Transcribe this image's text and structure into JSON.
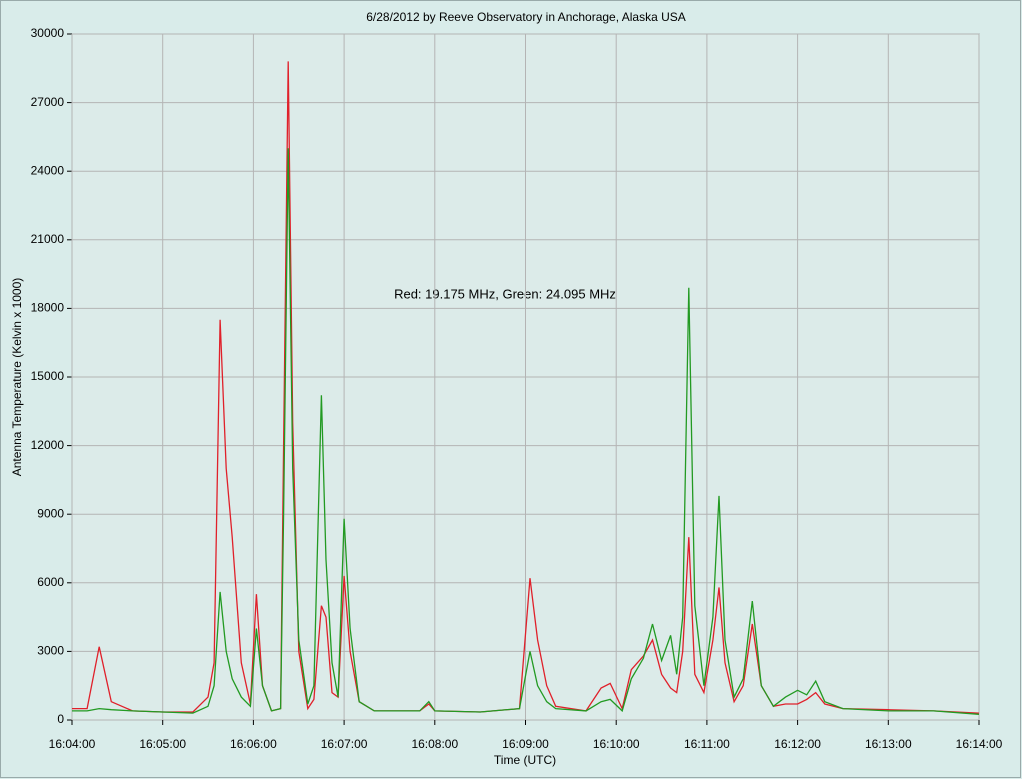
{
  "chart_data": {
    "type": "line",
    "title": "6/28/2012  by  Reeve Observatory  in  Anchorage, Alaska  USA",
    "annotation": "Red: 19.175 MHz, Green: 24.095 MHz",
    "x_label": "Time (UTC)",
    "y_label": "Antenna Temperature (Kelvin x 1000)",
    "xlim": [
      "16:04:00",
      "16:14:00"
    ],
    "xticks": [
      "16:04:00",
      "16:05:00",
      "16:06:00",
      "16:07:00",
      "16:08:00",
      "16:09:00",
      "16:10:00",
      "16:11:00",
      "16:12:00",
      "16:13:00",
      "16:14:00"
    ],
    "ylim": [
      0,
      30000
    ],
    "yticks": [
      0,
      3000,
      6000,
      9000,
      12000,
      15000,
      18000,
      21000,
      24000,
      27000,
      30000
    ],
    "grid": true,
    "x": [
      "16:04:00",
      "16:04:10",
      "16:04:18",
      "16:04:26",
      "16:04:40",
      "16:05:00",
      "16:05:20",
      "16:05:30",
      "16:05:34",
      "16:05:38",
      "16:05:42",
      "16:05:46",
      "16:05:52",
      "16:05:58",
      "16:06:02",
      "16:06:06",
      "16:06:12",
      "16:06:18",
      "16:06:20",
      "16:06:23",
      "16:06:26",
      "16:06:30",
      "16:06:36",
      "16:06:40",
      "16:06:45",
      "16:06:48",
      "16:06:52",
      "16:06:56",
      "16:07:00",
      "16:07:04",
      "16:07:10",
      "16:07:20",
      "16:07:50",
      "16:07:56",
      "16:08:00",
      "16:08:30",
      "16:08:56",
      "16:09:03",
      "16:09:08",
      "16:09:14",
      "16:09:20",
      "16:09:40",
      "16:09:50",
      "16:09:56",
      "16:10:04",
      "16:10:10",
      "16:10:18",
      "16:10:24",
      "16:10:30",
      "16:10:36",
      "16:10:40",
      "16:10:44",
      "16:10:48",
      "16:10:52",
      "16:10:58",
      "16:11:04",
      "16:11:08",
      "16:11:12",
      "16:11:18",
      "16:11:24",
      "16:11:30",
      "16:11:36",
      "16:11:44",
      "16:11:52",
      "16:12:00",
      "16:12:06",
      "16:12:12",
      "16:12:18",
      "16:12:30",
      "16:13:00",
      "16:13:30",
      "16:14:00"
    ],
    "series": [
      {
        "color": "#e0202a",
        "values": [
          500,
          500,
          3200,
          800,
          400,
          350,
          350,
          1000,
          2500,
          17500,
          11000,
          8000,
          2500,
          700,
          5500,
          1500,
          400,
          500,
          12000,
          28800,
          13000,
          3000,
          500,
          900,
          5000,
          4500,
          1200,
          1000,
          6300,
          3000,
          800,
          400,
          400,
          700,
          400,
          350,
          500,
          6200,
          3500,
          1500,
          600,
          400,
          1400,
          1600,
          500,
          2200,
          2800,
          3500,
          2000,
          1400,
          1200,
          3000,
          8000,
          2000,
          1200,
          3500,
          5800,
          2500,
          800,
          1500,
          4200,
          1500,
          600,
          700,
          700,
          900,
          1200,
          700,
          500,
          450,
          400,
          300
        ]
      },
      {
        "color": "#229a22",
        "values": [
          400,
          400,
          500,
          450,
          400,
          350,
          300,
          600,
          1500,
          5600,
          3000,
          1800,
          1000,
          600,
          4000,
          1500,
          400,
          500,
          9000,
          25000,
          11000,
          3500,
          700,
          1500,
          14200,
          7000,
          2500,
          1000,
          8800,
          4000,
          800,
          400,
          400,
          800,
          400,
          350,
          500,
          3000,
          1500,
          800,
          500,
          400,
          800,
          900,
          400,
          1800,
          2700,
          4200,
          2600,
          3700,
          2000,
          4500,
          18900,
          5000,
          1500,
          4500,
          9800,
          3500,
          1000,
          1800,
          5200,
          1500,
          600,
          1000,
          1300,
          1100,
          1700,
          800,
          500,
          400,
          400,
          250
        ]
      }
    ]
  }
}
